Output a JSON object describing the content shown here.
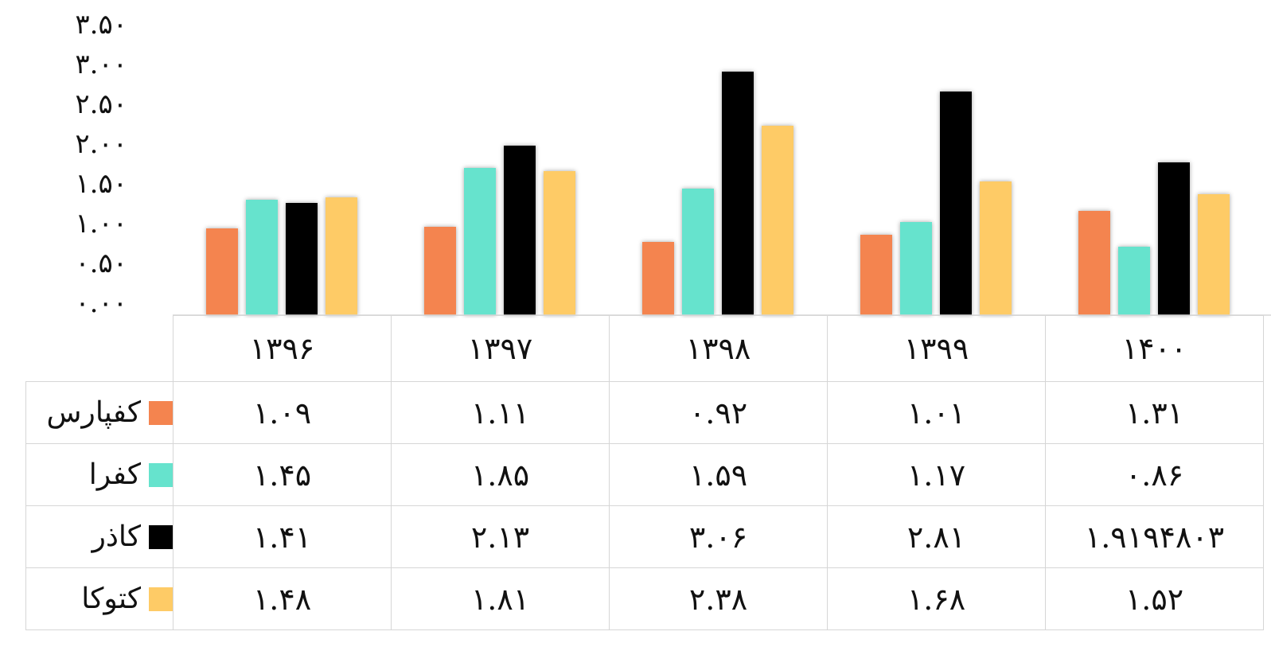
{
  "chart_data": {
    "type": "bar",
    "categories": [
      "۱۳۹۶",
      "۱۳۹۷",
      "۱۳۹۸",
      "۱۳۹۹",
      "۱۴۰۰"
    ],
    "series": [
      {
        "name": "کفپارس",
        "color": "#f4844f",
        "values": [
          1.09,
          1.11,
          0.92,
          1.01,
          1.31
        ],
        "labels": [
          "۱.۰۹",
          "۱.۱۱",
          "۰.۹۲",
          "۱.۰۱",
          "۱.۳۱"
        ]
      },
      {
        "name": "کفرا",
        "color": "#66e3cd",
        "values": [
          1.45,
          1.85,
          1.59,
          1.17,
          0.86
        ],
        "labels": [
          "۱.۴۵",
          "۱.۸۵",
          "۱.۵۹",
          "۱.۱۷",
          "۰.۸۶"
        ]
      },
      {
        "name": "کاذر",
        "color": "#000000",
        "values": [
          1.41,
          2.13,
          3.06,
          2.81,
          1.9194803
        ],
        "labels": [
          "۱.۴۱",
          "۲.۱۳",
          "۳.۰۶",
          "۲.۸۱",
          "۱.۹۱۹۴۸۰۳"
        ]
      },
      {
        "name": "کتوکا",
        "color": "#fecb66",
        "values": [
          1.48,
          1.81,
          2.38,
          1.68,
          1.52
        ],
        "labels": [
          "۱.۴۸",
          "۱.۸۱",
          "۲.۳۸",
          "۱.۶۸",
          "۱.۵۲"
        ]
      }
    ],
    "y_ticks": [
      "۰.۰۰",
      "۰.۵۰",
      "۱.۰۰",
      "۱.۵۰",
      "۲.۰۰",
      "۲.۵۰",
      "۳.۰۰",
      "۳.۵۰"
    ],
    "y_tick_values": [
      0,
      0.5,
      1,
      1.5,
      2,
      2.5,
      3,
      3.5
    ],
    "ylim": [
      0,
      3.5
    ],
    "grid": false,
    "legend": "data-table"
  }
}
